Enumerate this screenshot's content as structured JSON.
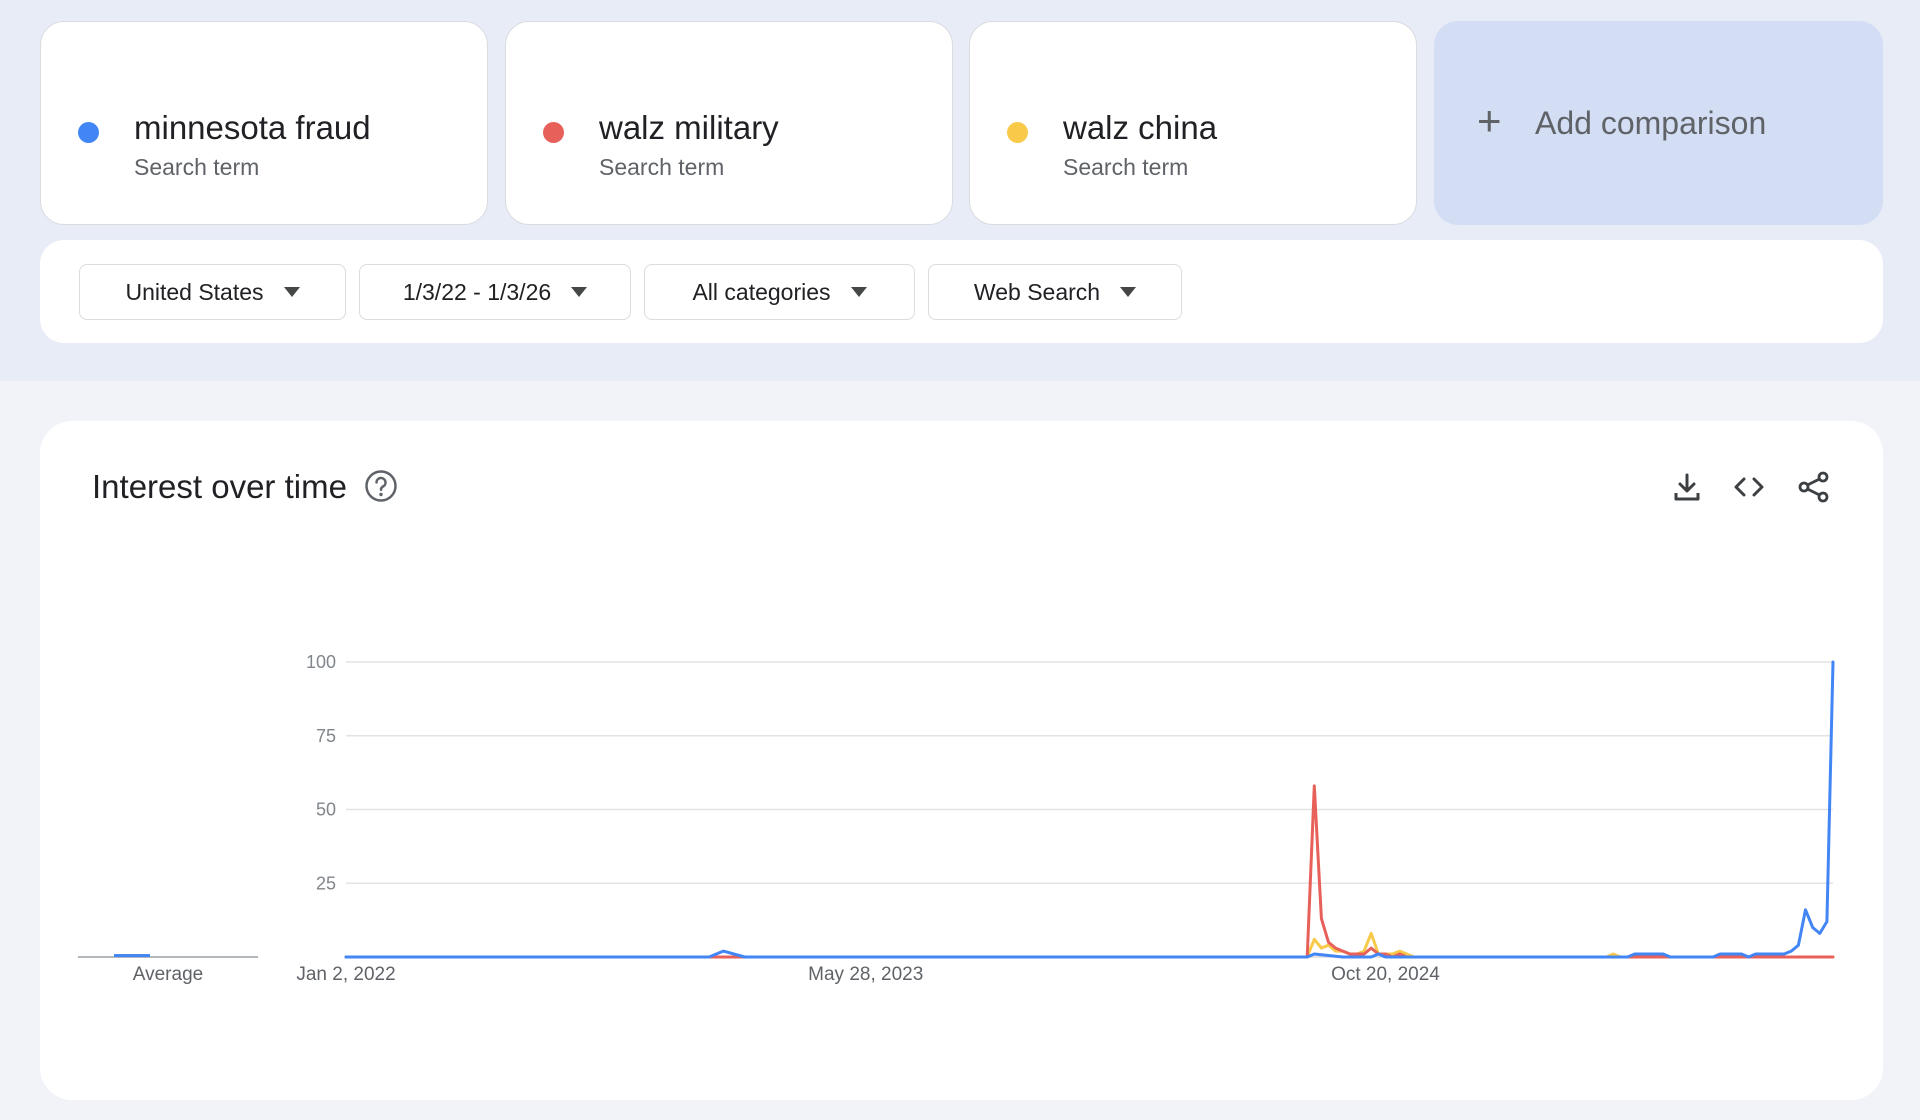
{
  "terms": [
    {
      "label": "minnesota fraud",
      "sub": "Search term",
      "color": "#4285f4"
    },
    {
      "label": "walz military",
      "sub": "Search term",
      "color": "#e8605a"
    },
    {
      "label": "walz china",
      "sub": "Search term",
      "color": "#f9c94a"
    }
  ],
  "add_comparison": {
    "icon": "+",
    "label": "Add comparison"
  },
  "filters": {
    "region": "United States",
    "date_range": "1/3/22 - 1/3/26",
    "category": "All categories",
    "search_type": "Web Search"
  },
  "panel": {
    "title": "Interest over time",
    "icons": [
      "help-icon",
      "download-icon",
      "embed-icon",
      "share-icon"
    ]
  },
  "chart_data": {
    "type": "line",
    "title": "Interest over time",
    "ylim": [
      0,
      100
    ],
    "yticks": [
      25,
      50,
      75,
      100
    ],
    "x_start": "Jan 2, 2022",
    "x_end": "Jan 3, 2026",
    "x_tick_labels": [
      "Jan 2, 2022",
      "May 28, 2023",
      "Oct 20, 2024"
    ],
    "grid": true,
    "average_label": "Average",
    "averages": [
      1,
      0,
      0
    ],
    "series": [
      {
        "name": "minnesota fraud",
        "color": "#4285f4",
        "points": [
          [
            "2022-01-02",
            0
          ],
          [
            "2022-12-25",
            0
          ],
          [
            "2023-01-08",
            2
          ],
          [
            "2023-01-29",
            0
          ],
          [
            "2024-08-04",
            0
          ],
          [
            "2024-08-11",
            1
          ],
          [
            "2024-09-08",
            0
          ],
          [
            "2024-10-06",
            0
          ],
          [
            "2024-10-13",
            1
          ],
          [
            "2024-10-20",
            0
          ],
          [
            "2025-06-15",
            0
          ],
          [
            "2025-06-22",
            1
          ],
          [
            "2025-07-20",
            1
          ],
          [
            "2025-07-27",
            0
          ],
          [
            "2025-09-07",
            0
          ],
          [
            "2025-09-14",
            1
          ],
          [
            "2025-10-05",
            1
          ],
          [
            "2025-10-12",
            0
          ],
          [
            "2025-10-19",
            1
          ],
          [
            "2025-11-16",
            1
          ],
          [
            "2025-11-23",
            2
          ],
          [
            "2025-11-30",
            4
          ],
          [
            "2025-12-07",
            16
          ],
          [
            "2025-12-14",
            10
          ],
          [
            "2025-12-21",
            8
          ],
          [
            "2025-12-28",
            12
          ],
          [
            "2026-01-03",
            100
          ]
        ]
      },
      {
        "name": "walz military",
        "color": "#e8605a",
        "points": [
          [
            "2022-01-02",
            0
          ],
          [
            "2024-08-04",
            0
          ],
          [
            "2024-08-11",
            58
          ],
          [
            "2024-08-18",
            13
          ],
          [
            "2024-08-25",
            5
          ],
          [
            "2024-09-01",
            3
          ],
          [
            "2024-09-08",
            2
          ],
          [
            "2024-09-15",
            1
          ],
          [
            "2024-09-22",
            1
          ],
          [
            "2024-09-29",
            1
          ],
          [
            "2024-10-06",
            3
          ],
          [
            "2024-10-13",
            1
          ],
          [
            "2024-10-20",
            1
          ],
          [
            "2024-10-27",
            0
          ],
          [
            "2024-11-03",
            1
          ],
          [
            "2024-11-10",
            0
          ],
          [
            "2026-01-03",
            0
          ]
        ]
      },
      {
        "name": "walz china",
        "color": "#f9c94a",
        "points": [
          [
            "2022-01-02",
            0
          ],
          [
            "2024-08-04",
            0
          ],
          [
            "2024-08-11",
            6
          ],
          [
            "2024-08-18",
            3
          ],
          [
            "2024-08-25",
            4
          ],
          [
            "2024-09-01",
            2
          ],
          [
            "2024-09-08",
            2
          ],
          [
            "2024-09-15",
            1
          ],
          [
            "2024-09-22",
            1
          ],
          [
            "2024-09-29",
            2
          ],
          [
            "2024-10-06",
            8
          ],
          [
            "2024-10-13",
            1
          ],
          [
            "2024-10-20",
            1
          ],
          [
            "2024-10-27",
            1
          ],
          [
            "2024-11-03",
            2
          ],
          [
            "2024-11-10",
            1
          ],
          [
            "2024-11-17",
            0
          ],
          [
            "2025-05-25",
            0
          ],
          [
            "2025-06-01",
            1
          ],
          [
            "2025-06-08",
            0
          ],
          [
            "2026-01-03",
            0
          ]
        ]
      }
    ]
  }
}
